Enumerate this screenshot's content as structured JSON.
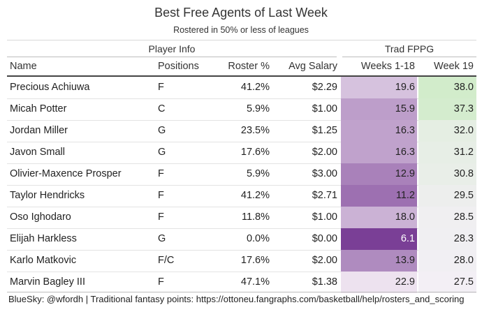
{
  "title": "Best Free Agents of Last Week",
  "subtitle": "Rostered in 50% or less of leagues",
  "spanners": {
    "player_info": "Player Info",
    "trad_fppg": "Trad FPPG"
  },
  "columns": [
    "Name",
    "Positions",
    "Roster %",
    "Avg Salary",
    "Weeks 1-18",
    "Week 19"
  ],
  "footer": "BlueSky: @wfordh | Traditional fantasy points: https://ottoneu.fangraphs.com/basketball/help/rosters_and_scoring",
  "colors": {
    "weeks_scale_low": "#7a3f96",
    "weeks_scale_high": "#ede2ef",
    "week19_scale_low": "#f3eff5",
    "week19_scale_high": "#d2eccb"
  },
  "chart_data": {
    "type": "table",
    "title": "Best Free Agents of Last Week",
    "subtitle": "Rostered in 50% or less of leagues",
    "columns": [
      "Name",
      "Positions",
      "Roster %",
      "Avg Salary",
      "Weeks 1-18",
      "Week 19"
    ],
    "rows": [
      {
        "name": "Precious Achiuwa",
        "positions": "F",
        "roster_pct": "41.2%",
        "avg_salary": "$2.29",
        "weeks_1_18": 19.6,
        "week_19": 38.0
      },
      {
        "name": "Micah Potter",
        "positions": "C",
        "roster_pct": "5.9%",
        "avg_salary": "$1.00",
        "weeks_1_18": 15.9,
        "week_19": 37.3
      },
      {
        "name": "Jordan Miller",
        "positions": "G",
        "roster_pct": "23.5%",
        "avg_salary": "$1.25",
        "weeks_1_18": 16.3,
        "week_19": 32.0
      },
      {
        "name": "Javon Small",
        "positions": "G",
        "roster_pct": "17.6%",
        "avg_salary": "$2.00",
        "weeks_1_18": 16.3,
        "week_19": 31.2
      },
      {
        "name": "Olivier-Maxence Prosper",
        "positions": "F",
        "roster_pct": "5.9%",
        "avg_salary": "$3.00",
        "weeks_1_18": 12.9,
        "week_19": 30.8
      },
      {
        "name": "Taylor Hendricks",
        "positions": "F",
        "roster_pct": "41.2%",
        "avg_salary": "$2.71",
        "weeks_1_18": 11.2,
        "week_19": 29.5
      },
      {
        "name": "Oso Ighodaro",
        "positions": "F",
        "roster_pct": "11.8%",
        "avg_salary": "$1.00",
        "weeks_1_18": 18.0,
        "week_19": 28.5
      },
      {
        "name": "Elijah Harkless",
        "positions": "G",
        "roster_pct": "0.0%",
        "avg_salary": "$0.00",
        "weeks_1_18": 6.1,
        "week_19": 28.3
      },
      {
        "name": "Karlo Matkovic",
        "positions": "F/C",
        "roster_pct": "17.6%",
        "avg_salary": "$2.00",
        "weeks_1_18": 13.9,
        "week_19": 28.0
      },
      {
        "name": "Marvin Bagley III",
        "positions": "F",
        "roster_pct": "47.1%",
        "avg_salary": "$1.38",
        "weeks_1_18": 22.9,
        "week_19": 27.5
      }
    ]
  }
}
